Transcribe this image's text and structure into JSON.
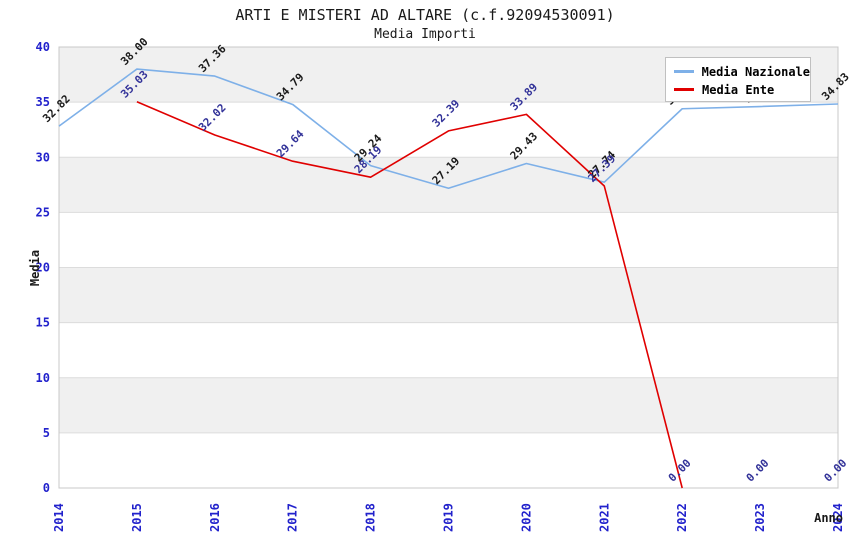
{
  "chart_data": {
    "type": "line",
    "title": "ARTI E MISTERI AD ALTARE (c.f.92094530091)",
    "subtitle": "Media Importi",
    "xlabel": "Anno",
    "ylabel": "Media",
    "ylim": [
      0,
      40
    ],
    "yticks": [
      0,
      5,
      10,
      15,
      20,
      25,
      30,
      35,
      40
    ],
    "categories": [
      "2014",
      "2015",
      "2016",
      "2017",
      "2018",
      "2019",
      "2020",
      "2021",
      "2022",
      "2023",
      "2024"
    ],
    "grid": "horizontal-alternating-bands",
    "legend_position": "top-right",
    "series": [
      {
        "name": "Media Nazionale",
        "color": "#7eb0e8",
        "label_color": "#1a1a1a",
        "values": [
          32.82,
          38.0,
          37.36,
          34.79,
          29.24,
          27.19,
          29.43,
          27.74,
          34.4,
          34.6,
          34.83
        ],
        "labels": [
          "32.82",
          "38.00",
          "37.36",
          "34.79",
          "29.24",
          "27.19",
          "29.43",
          "27.74",
          "34.40",
          "34.60",
          "34.83"
        ]
      },
      {
        "name": "Media Ente",
        "color": "#e00000",
        "label_color": "#333399",
        "values": [
          null,
          35.03,
          32.02,
          29.64,
          28.19,
          32.39,
          33.89,
          27.39,
          0.0,
          0.0,
          0.0
        ],
        "labels": [
          "",
          "35.03",
          "32.02",
          "29.64",
          "28.19",
          "32.39",
          "33.89",
          "27.39",
          "0.00",
          "0.00",
          "0.00"
        ],
        "line_drawn_through_index": 8
      }
    ],
    "colors": {
      "tick_label": "#2222cc",
      "band_gray": "#f0f0f0",
      "band_white": "#ffffff",
      "plot_border": "#c8c8c8",
      "gridline": "#dcdcdc",
      "axis_title": "#1a1a1a",
      "background": "#ffffff"
    }
  }
}
